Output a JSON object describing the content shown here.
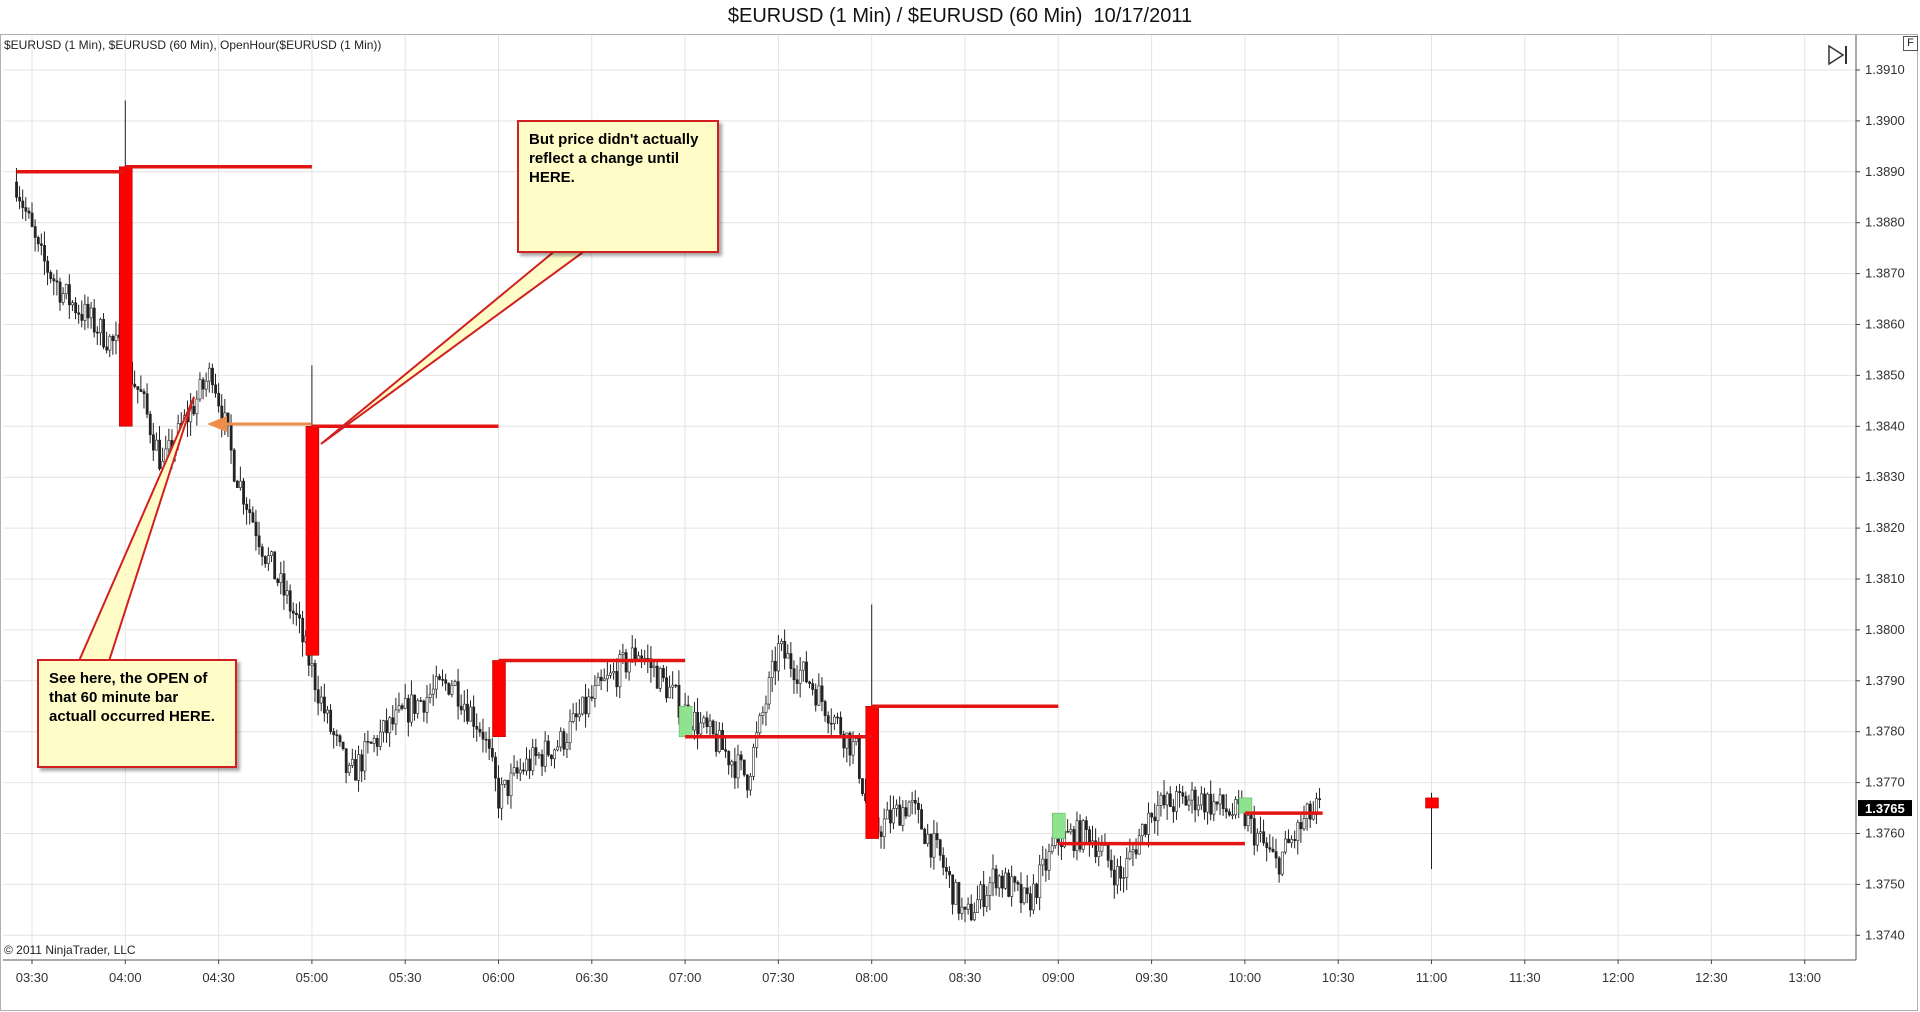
{
  "window": {
    "title": "$EURUSD (1 Min) / $EURUSD (60 Min)  10/17/2011",
    "panel_label": "$EURUSD (1 Min), $EURUSD (60 Min), OpenHour($EURUSD (1 Min))",
    "copyright": "© 2011 NinjaTrader, LLC",
    "corner_button": "F",
    "nav_icon": "skip-to-end-icon"
  },
  "annotations": {
    "top_note": "But price didn't actually reflect a change until HERE.",
    "bottom_note": "See here, the OPEN of that 60 minute bar actuall occurred HERE."
  },
  "colors": {
    "hourly_bar": "#ff0000",
    "open_hour_line": "#e41414",
    "up_candle": "#8fe38f",
    "minute_candle": "#222222",
    "arrow": "#f08c4a",
    "price_marker_bg": "#000000"
  },
  "chart_data": {
    "type": "candlestick",
    "title": "$EURUSD (1 Min) / $EURUSD (60 Min)  10/17/2011",
    "xlabel": "",
    "ylabel": "",
    "x_ticks": [
      "03:30",
      "04:00",
      "04:30",
      "05:00",
      "05:30",
      "06:00",
      "06:30",
      "07:00",
      "07:30",
      "08:00",
      "08:30",
      "09:00",
      "09:30",
      "10:00",
      "10:30",
      "11:00",
      "11:30",
      "12:00",
      "12:30",
      "13:00"
    ],
    "y_ticks": [
      "1.3740",
      "1.3750",
      "1.3760",
      "1.3770",
      "1.3780",
      "1.3790",
      "1.3800",
      "1.3810",
      "1.3820",
      "1.3830",
      "1.3840",
      "1.3850",
      "1.3860",
      "1.3870",
      "1.3880",
      "1.3890",
      "1.3900",
      "1.3910"
    ],
    "ylim": [
      1.37355,
      1.39155
    ],
    "grid": true,
    "last_price": "1.3765",
    "minute_price_path": [
      [
        "03:25",
        1.3888
      ],
      [
        "03:32",
        1.3874
      ],
      [
        "03:40",
        1.3866
      ],
      [
        "03:50",
        1.386
      ],
      [
        "03:58",
        1.3855
      ],
      [
        "04:05",
        1.3846
      ],
      [
        "04:12",
        1.3832
      ],
      [
        "04:20",
        1.3842
      ],
      [
        "04:28",
        1.3851
      ],
      [
        "04:35",
        1.3832
      ],
      [
        "04:45",
        1.3815
      ],
      [
        "04:55",
        1.3802
      ],
      [
        "05:00",
        1.3792
      ],
      [
        "05:05",
        1.3782
      ],
      [
        "05:12",
        1.3771
      ],
      [
        "05:20",
        1.3778
      ],
      [
        "05:32",
        1.3785
      ],
      [
        "05:45",
        1.379
      ],
      [
        "05:55",
        1.378
      ],
      [
        "06:00",
        1.3767
      ],
      [
        "06:08",
        1.3773
      ],
      [
        "06:20",
        1.3778
      ],
      [
        "06:32",
        1.3788
      ],
      [
        "06:45",
        1.3796
      ],
      [
        "07:00",
        1.3784
      ],
      [
        "07:10",
        1.3778
      ],
      [
        "07:20",
        1.3771
      ],
      [
        "07:30",
        1.3796
      ],
      [
        "07:40",
        1.379
      ],
      [
        "07:55",
        1.3776
      ],
      [
        "08:00",
        1.376
      ],
      [
        "08:12",
        1.3766
      ],
      [
        "08:22",
        1.3755
      ],
      [
        "08:30",
        1.3743
      ],
      [
        "08:40",
        1.3752
      ],
      [
        "08:50",
        1.3746
      ],
      [
        "09:00",
        1.3759
      ],
      [
        "09:10",
        1.376
      ],
      [
        "09:20",
        1.3751
      ],
      [
        "09:30",
        1.3765
      ],
      [
        "09:45",
        1.3767
      ],
      [
        "10:00",
        1.3763
      ],
      [
        "10:10",
        1.3754
      ],
      [
        "10:20",
        1.3763
      ],
      [
        "10:24",
        1.3765
      ]
    ],
    "hourly_bars": [
      {
        "time": "04:00",
        "open": 1.3891,
        "high": 1.3904,
        "low": 1.384,
        "close": 1.384
      },
      {
        "time": "05:00",
        "open": 1.384,
        "high": 1.3852,
        "low": 1.3795,
        "close": 1.3795
      },
      {
        "time": "06:00",
        "open": 1.3794,
        "high": 1.3794,
        "low": 1.3779,
        "close": 1.3779
      },
      {
        "time": "08:00",
        "open": 1.3785,
        "high": 1.3805,
        "low": 1.3759,
        "close": 1.3759
      },
      {
        "time": "11:00",
        "open": 1.3767,
        "high": 1.3768,
        "low": 1.3753,
        "close": 1.3765
      }
    ],
    "hourly_up_bars": [
      {
        "time": "07:00",
        "open": 1.3779,
        "close": 1.3785
      },
      {
        "time": "09:00",
        "open": 1.3759,
        "close": 1.3764
      },
      {
        "time": "10:00",
        "open": 1.3764,
        "close": 1.3767
      }
    ],
    "open_hour_levels": [
      {
        "from": "03:25",
        "to": "04:00",
        "value": 1.389
      },
      {
        "from": "04:00",
        "to": "05:00",
        "value": 1.3891
      },
      {
        "from": "05:00",
        "to": "06:00",
        "value": 1.384
      },
      {
        "from": "06:00",
        "to": "07:00",
        "value": 1.3794
      },
      {
        "from": "07:00",
        "to": "08:00",
        "value": 1.3779
      },
      {
        "from": "08:00",
        "to": "09:00",
        "value": 1.3785
      },
      {
        "from": "09:00",
        "to": "10:00",
        "value": 1.3758
      },
      {
        "from": "10:00",
        "to": "10:25",
        "value": 1.3764
      }
    ]
  }
}
